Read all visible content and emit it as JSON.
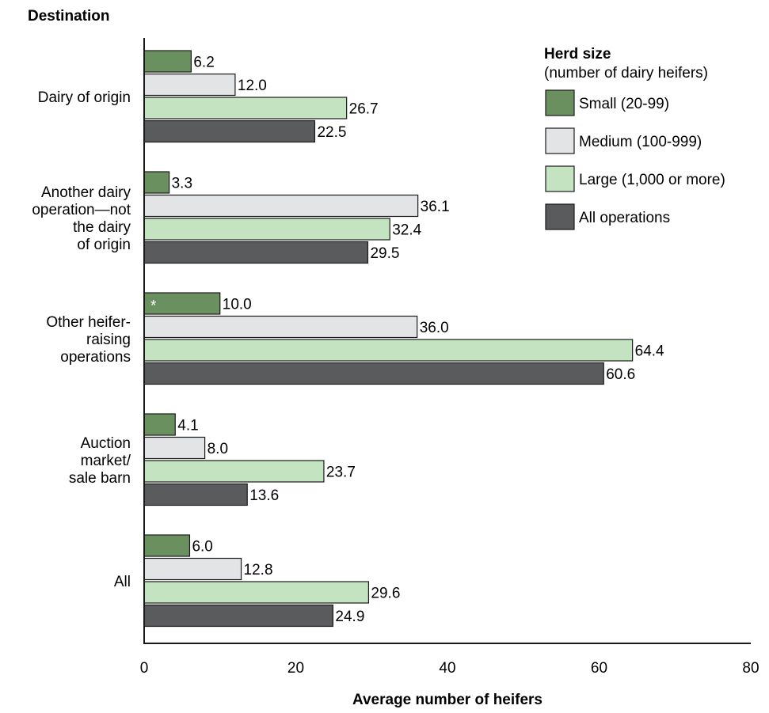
{
  "chart_data": {
    "type": "bar",
    "orientation": "horizontal",
    "y_axis_title": "Destination",
    "xlabel": "Average number of heifers",
    "xlim": [
      0,
      80
    ],
    "xticks": [
      0,
      20,
      40,
      60,
      80
    ],
    "grid": false,
    "legend_position": "top-right",
    "legend_title": "Herd size",
    "legend_subtitle": "(number of dairy heifers)",
    "categories": [
      [
        "Dairy of origin"
      ],
      [
        "Another dairy",
        "operation—not",
        "the dairy",
        "of origin"
      ],
      [
        "Other heifer-",
        "raising",
        "operations"
      ],
      [
        "Auction",
        "market/",
        "sale barn"
      ],
      [
        "All"
      ]
    ],
    "series": [
      {
        "name": "Small (20-99)",
        "color": "#6a9060",
        "values": [
          6.2,
          3.3,
          10.0,
          4.1,
          6.0
        ],
        "label_prefixes": [
          "",
          "",
          "*",
          "",
          ""
        ]
      },
      {
        "name": "Medium (100-999)",
        "color": "#e3e4e6",
        "values": [
          12.0,
          36.1,
          36.0,
          8.0,
          12.8
        ]
      },
      {
        "name": "Large (1,000 or more)",
        "color": "#c4e3c0",
        "values": [
          26.7,
          32.4,
          64.4,
          23.7,
          29.6
        ]
      },
      {
        "name": "All operations",
        "color": "#5a5b5d",
        "values": [
          22.5,
          29.5,
          60.6,
          13.6,
          24.9
        ]
      }
    ]
  }
}
